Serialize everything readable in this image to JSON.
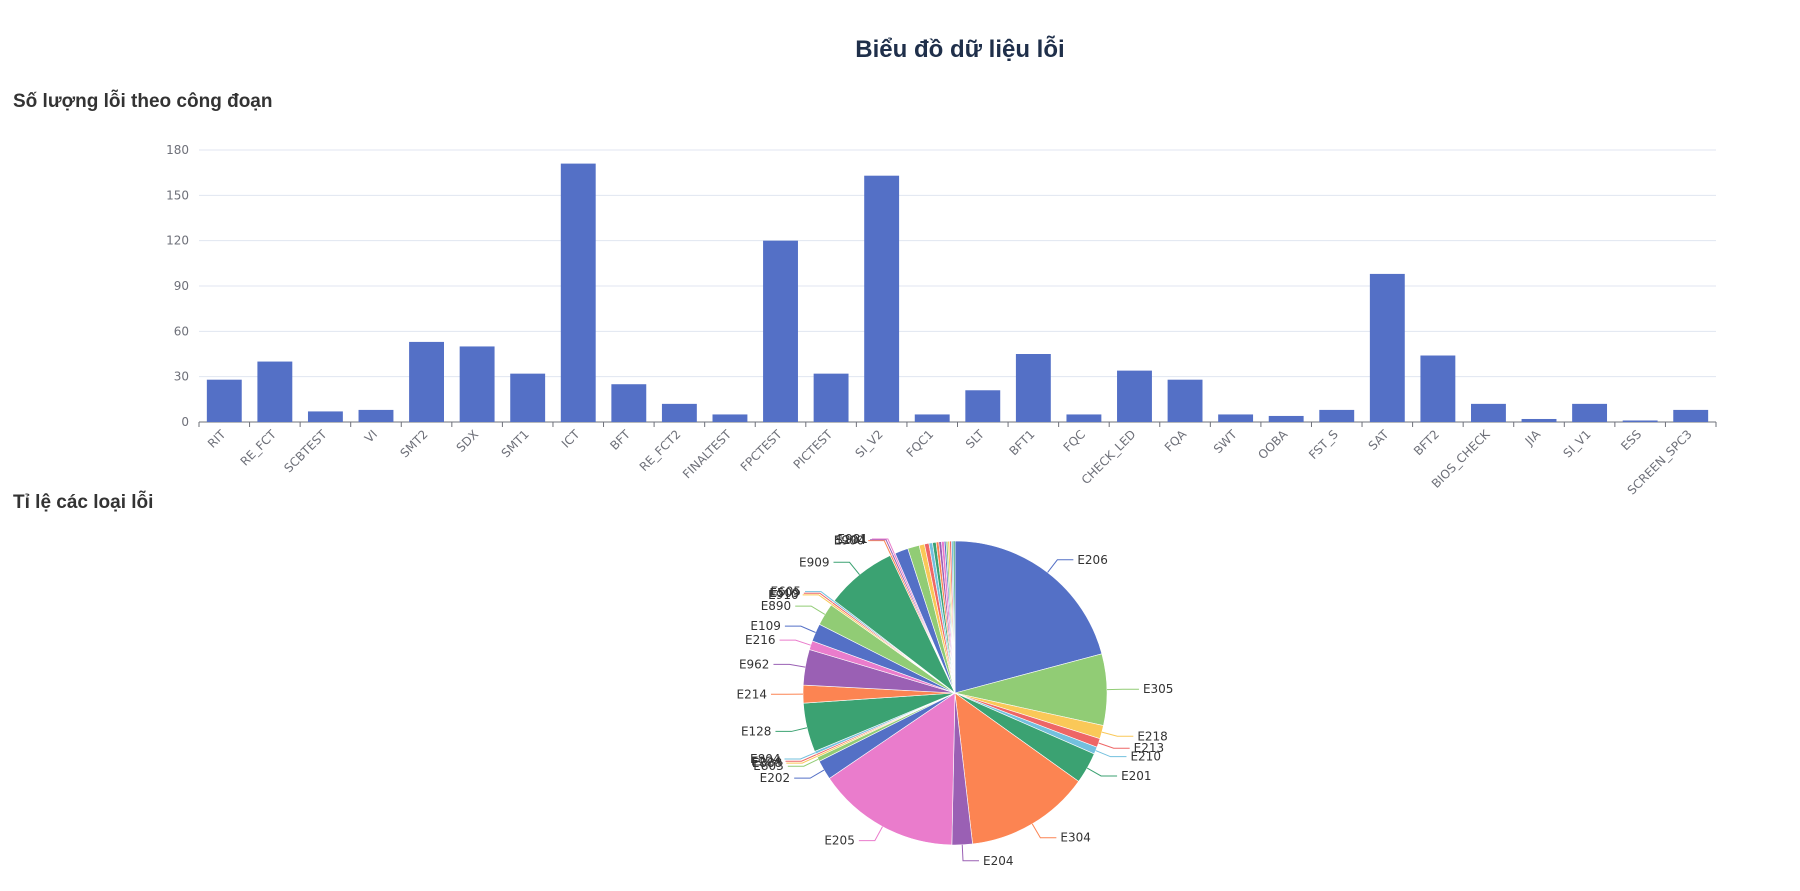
{
  "page": {
    "title": "Biểu đồ dữ liệu lỗi",
    "bar_section_title": "Số lượng lỗi theo công đoạn",
    "pie_section_title": "Tỉ lệ các loại lỗi"
  },
  "colors": {
    "bar": "#5470c6",
    "grid": "#e0e6f1",
    "axis": "#6e7079",
    "palette": [
      "#5470c6",
      "#91cc75",
      "#fac858",
      "#ee6666",
      "#73c0de",
      "#3ba272",
      "#fc8452",
      "#9a60b4",
      "#ea7ccc"
    ]
  },
  "chart_data": [
    {
      "type": "bar",
      "title": "Số lượng lỗi theo công đoạn",
      "categories": [
        "RIT",
        "RE_FCT",
        "SCBTEST",
        "VI",
        "SMT2",
        "SDX",
        "SMT1",
        "ICT",
        "BFT",
        "RE_FCT2",
        "FINALTEST",
        "FPCTEST",
        "PICTEST",
        "SI_V2",
        "FQC1",
        "SLT",
        "BFT1",
        "FQC",
        "CHECK_LED",
        "FQA",
        "SWT",
        "OOBA",
        "FST_S",
        "SAT",
        "BFT2",
        "BIOS_CHECK",
        "JIA",
        "SI_V1",
        "ESS",
        "SCREEN_SPC3"
      ],
      "values": [
        28,
        40,
        7,
        8,
        53,
        50,
        32,
        171,
        25,
        12,
        5,
        120,
        32,
        163,
        5,
        21,
        45,
        5,
        34,
        28,
        5,
        4,
        8,
        98,
        44,
        12,
        2,
        12,
        1,
        8
      ],
      "ylim": [
        0,
        180
      ],
      "yticks": [
        0,
        30,
        60,
        90,
        120,
        150,
        180
      ],
      "grid": true,
      "legend": "none"
    },
    {
      "type": "pie",
      "title": "Tỉ lệ các loại lỗi",
      "slices": [
        {
          "label": "E206",
          "value": 22.0
        },
        {
          "label": "E305",
          "value": 8.0
        },
        {
          "label": "E218",
          "value": 1.5
        },
        {
          "label": "E213",
          "value": 1.0
        },
        {
          "label": "E210",
          "value": 0.8
        },
        {
          "label": "E201",
          "value": 3.5
        },
        {
          "label": "E304",
          "value": 14.0
        },
        {
          "label": "E204",
          "value": 2.3
        },
        {
          "label": "E205",
          "value": 16.0
        },
        {
          "label": "E202",
          "value": 2.2
        },
        {
          "label": "E803",
          "value": 0.5
        },
        {
          "label": "E888",
          "value": 0.2
        },
        {
          "label": "E224",
          "value": 0.2
        },
        {
          "label": "E804",
          "value": 0.3
        },
        {
          "label": "E128",
          "value": 5.5
        },
        {
          "label": "E214",
          "value": 2.0
        },
        {
          "label": "E962",
          "value": 4.0
        },
        {
          "label": "E216",
          "value": 1.0
        },
        {
          "label": "E109",
          "value": 2.0
        },
        {
          "label": "E890",
          "value": 2.5
        },
        {
          "label": "E910",
          "value": 0.2
        },
        {
          "label": "E509",
          "value": 0.2
        },
        {
          "label": "E605",
          "value": 0.2
        },
        {
          "label": "E909",
          "value": 8.0
        },
        {
          "label": "E900",
          "value": 0.2
        },
        {
          "label": "S204",
          "value": 0.2
        },
        {
          "label": "E981",
          "value": 0.2
        },
        {
          "label": "",
          "value": 1.5
        },
        {
          "label": "",
          "value": 1.3
        },
        {
          "label": "",
          "value": 0.6
        },
        {
          "label": "",
          "value": 0.5
        },
        {
          "label": "",
          "value": 0.4
        },
        {
          "label": "",
          "value": 0.4
        },
        {
          "label": "",
          "value": 0.3
        },
        {
          "label": "",
          "value": 0.3
        },
        {
          "label": "",
          "value": 0.3
        },
        {
          "label": "",
          "value": 0.2
        },
        {
          "label": "",
          "value": 0.2
        },
        {
          "label": "",
          "value": 0.2
        },
        {
          "label": "",
          "value": 0.2
        },
        {
          "label": "",
          "value": 0.2
        },
        {
          "label": "",
          "value": 0.2
        }
      ],
      "legend": "none"
    }
  ]
}
